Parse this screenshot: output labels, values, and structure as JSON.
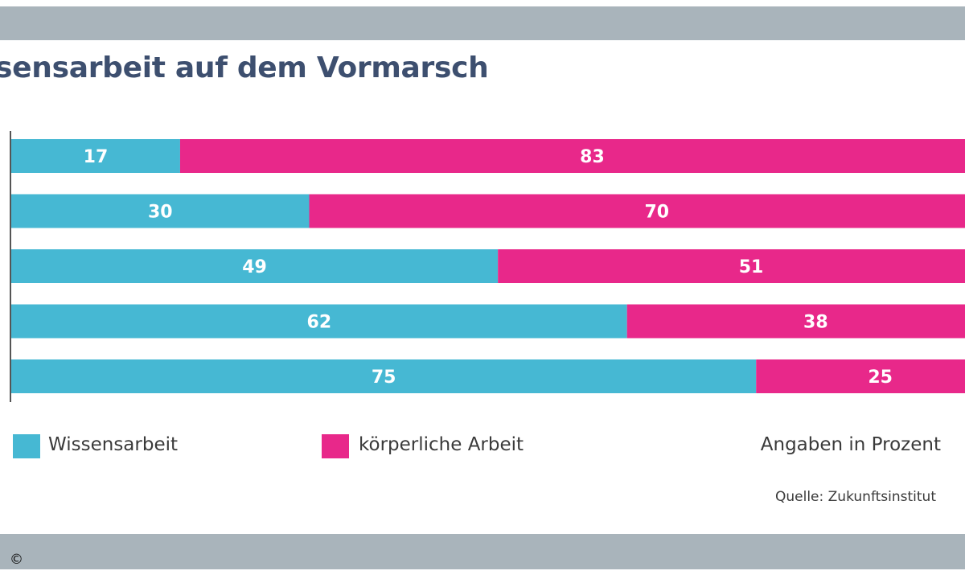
{
  "title": "sensarbeit auf dem Vormarsch",
  "chart_data": {
    "type": "bar",
    "orientation": "horizontal",
    "stacked": true,
    "categories": [
      "",
      "",
      "",
      "",
      ""
    ],
    "series": [
      {
        "name": "Wissensarbeit",
        "color": "#46b8d3",
        "values": [
          17,
          30,
          49,
          62,
          75
        ]
      },
      {
        "name": "körperliche Arbeit",
        "color": "#e8288a",
        "values": [
          83,
          70,
          51,
          38,
          25
        ]
      }
    ],
    "xlim": [
      0,
      100
    ],
    "legend_position": "bottom"
  },
  "note": "Angaben in Prozent",
  "source": "Quelle: Zukunftsinstitut",
  "copyright": "©"
}
